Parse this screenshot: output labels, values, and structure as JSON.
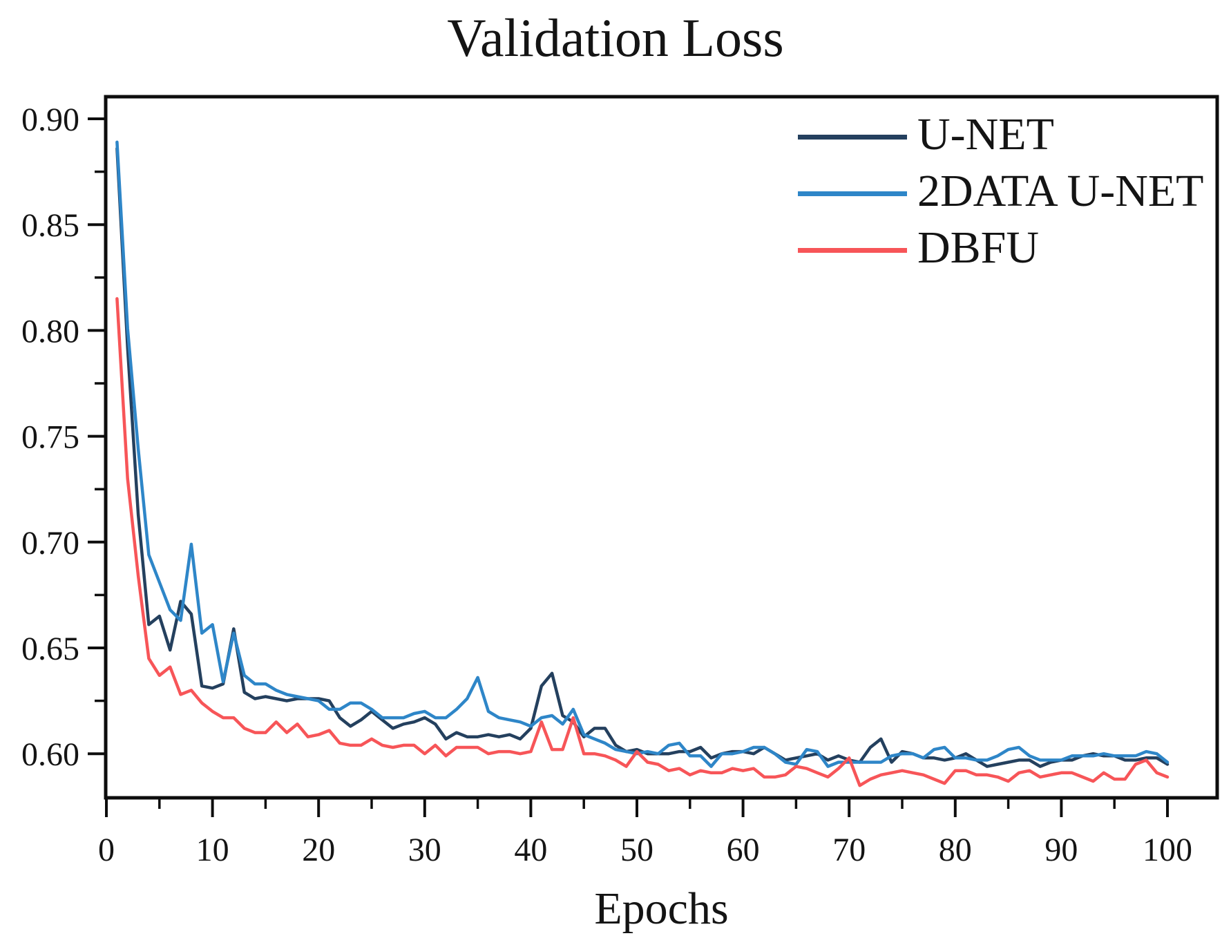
{
  "figure": {
    "title": "Validation Loss",
    "x_axis_label": "Epochs"
  },
  "chart_data": {
    "type": "line",
    "title": "Validation Loss",
    "xlabel": "Epochs",
    "ylabel": "",
    "x_ticks": [
      0,
      10,
      20,
      30,
      40,
      50,
      60,
      70,
      80,
      90,
      100
    ],
    "y_ticks": [
      "0.60",
      "0.65",
      "0.70",
      "0.75",
      "0.80",
      "0.85",
      "0.90"
    ],
    "xlim": [
      0,
      104.5
    ],
    "ylim": [
      0.579,
      0.911
    ],
    "grid": false,
    "legend_position": "upper right",
    "x_description": "epochs 1 through 100, one point per epoch",
    "series": [
      {
        "name": "U-NET",
        "color": "#24405E",
        "values": [
          0.886,
          0.792,
          0.713,
          0.661,
          0.665,
          0.649,
          0.672,
          0.666,
          0.632,
          0.631,
          0.633,
          0.659,
          0.629,
          0.626,
          0.627,
          0.626,
          0.625,
          0.626,
          0.626,
          0.626,
          0.625,
          0.617,
          0.613,
          0.616,
          0.62,
          0.616,
          0.612,
          0.614,
          0.615,
          0.617,
          0.614,
          0.607,
          0.61,
          0.608,
          0.608,
          0.609,
          0.608,
          0.609,
          0.607,
          0.612,
          0.632,
          0.638,
          0.618,
          0.615,
          0.608,
          0.612,
          0.612,
          0.604,
          0.601,
          0.602,
          0.6,
          0.6,
          0.6,
          0.601,
          0.601,
          0.603,
          0.598,
          0.6,
          0.601,
          0.601,
          0.6,
          0.603,
          0.6,
          0.597,
          0.598,
          0.599,
          0.6,
          0.597,
          0.599,
          0.597,
          0.596,
          0.603,
          0.607,
          0.596,
          0.601,
          0.6,
          0.598,
          0.598,
          0.597,
          0.598,
          0.6,
          0.597,
          0.594,
          0.595,
          0.596,
          0.597,
          0.597,
          0.594,
          0.596,
          0.597,
          0.597,
          0.599,
          0.6,
          0.599,
          0.599,
          0.597,
          0.597,
          0.598,
          0.598,
          0.595
        ]
      },
      {
        "name": "2DATA U-NET",
        "color": "#2E86C8",
        "values": [
          0.889,
          0.801,
          0.744,
          0.694,
          0.681,
          0.668,
          0.663,
          0.699,
          0.657,
          0.661,
          0.634,
          0.657,
          0.637,
          0.633,
          0.633,
          0.63,
          0.628,
          0.627,
          0.626,
          0.625,
          0.621,
          0.621,
          0.624,
          0.624,
          0.621,
          0.617,
          0.617,
          0.617,
          0.619,
          0.62,
          0.617,
          0.617,
          0.621,
          0.626,
          0.636,
          0.62,
          0.617,
          0.616,
          0.615,
          0.613,
          0.617,
          0.618,
          0.614,
          0.621,
          0.609,
          0.607,
          0.605,
          0.602,
          0.601,
          0.6,
          0.601,
          0.6,
          0.604,
          0.605,
          0.599,
          0.599,
          0.594,
          0.6,
          0.6,
          0.601,
          0.603,
          0.603,
          0.6,
          0.596,
          0.595,
          0.602,
          0.601,
          0.594,
          0.596,
          0.596,
          0.596,
          0.596,
          0.596,
          0.599,
          0.6,
          0.6,
          0.598,
          0.602,
          0.603,
          0.598,
          0.598,
          0.597,
          0.597,
          0.599,
          0.602,
          0.603,
          0.599,
          0.597,
          0.597,
          0.597,
          0.599,
          0.599,
          0.599,
          0.6,
          0.599,
          0.599,
          0.599,
          0.601,
          0.6,
          0.596
        ]
      },
      {
        "name": "DBFU",
        "color": "#F75558",
        "values": [
          0.815,
          0.73,
          0.684,
          0.645,
          0.637,
          0.641,
          0.628,
          0.63,
          0.624,
          0.62,
          0.617,
          0.617,
          0.612,
          0.61,
          0.61,
          0.615,
          0.61,
          0.614,
          0.608,
          0.609,
          0.611,
          0.605,
          0.604,
          0.604,
          0.607,
          0.604,
          0.603,
          0.604,
          0.604,
          0.6,
          0.604,
          0.599,
          0.603,
          0.603,
          0.603,
          0.6,
          0.601,
          0.601,
          0.6,
          0.601,
          0.615,
          0.602,
          0.602,
          0.617,
          0.6,
          0.6,
          0.599,
          0.597,
          0.594,
          0.601,
          0.596,
          0.595,
          0.592,
          0.593,
          0.59,
          0.592,
          0.591,
          0.591,
          0.593,
          0.592,
          0.593,
          0.589,
          0.589,
          0.59,
          0.594,
          0.593,
          0.591,
          0.589,
          0.593,
          0.598,
          0.585,
          0.588,
          0.59,
          0.591,
          0.592,
          0.591,
          0.59,
          0.588,
          0.586,
          0.592,
          0.592,
          0.59,
          0.59,
          0.589,
          0.587,
          0.591,
          0.592,
          0.589,
          0.59,
          0.591,
          0.591,
          0.589,
          0.587,
          0.591,
          0.588,
          0.588,
          0.595,
          0.597,
          0.591,
          0.589
        ]
      }
    ]
  }
}
